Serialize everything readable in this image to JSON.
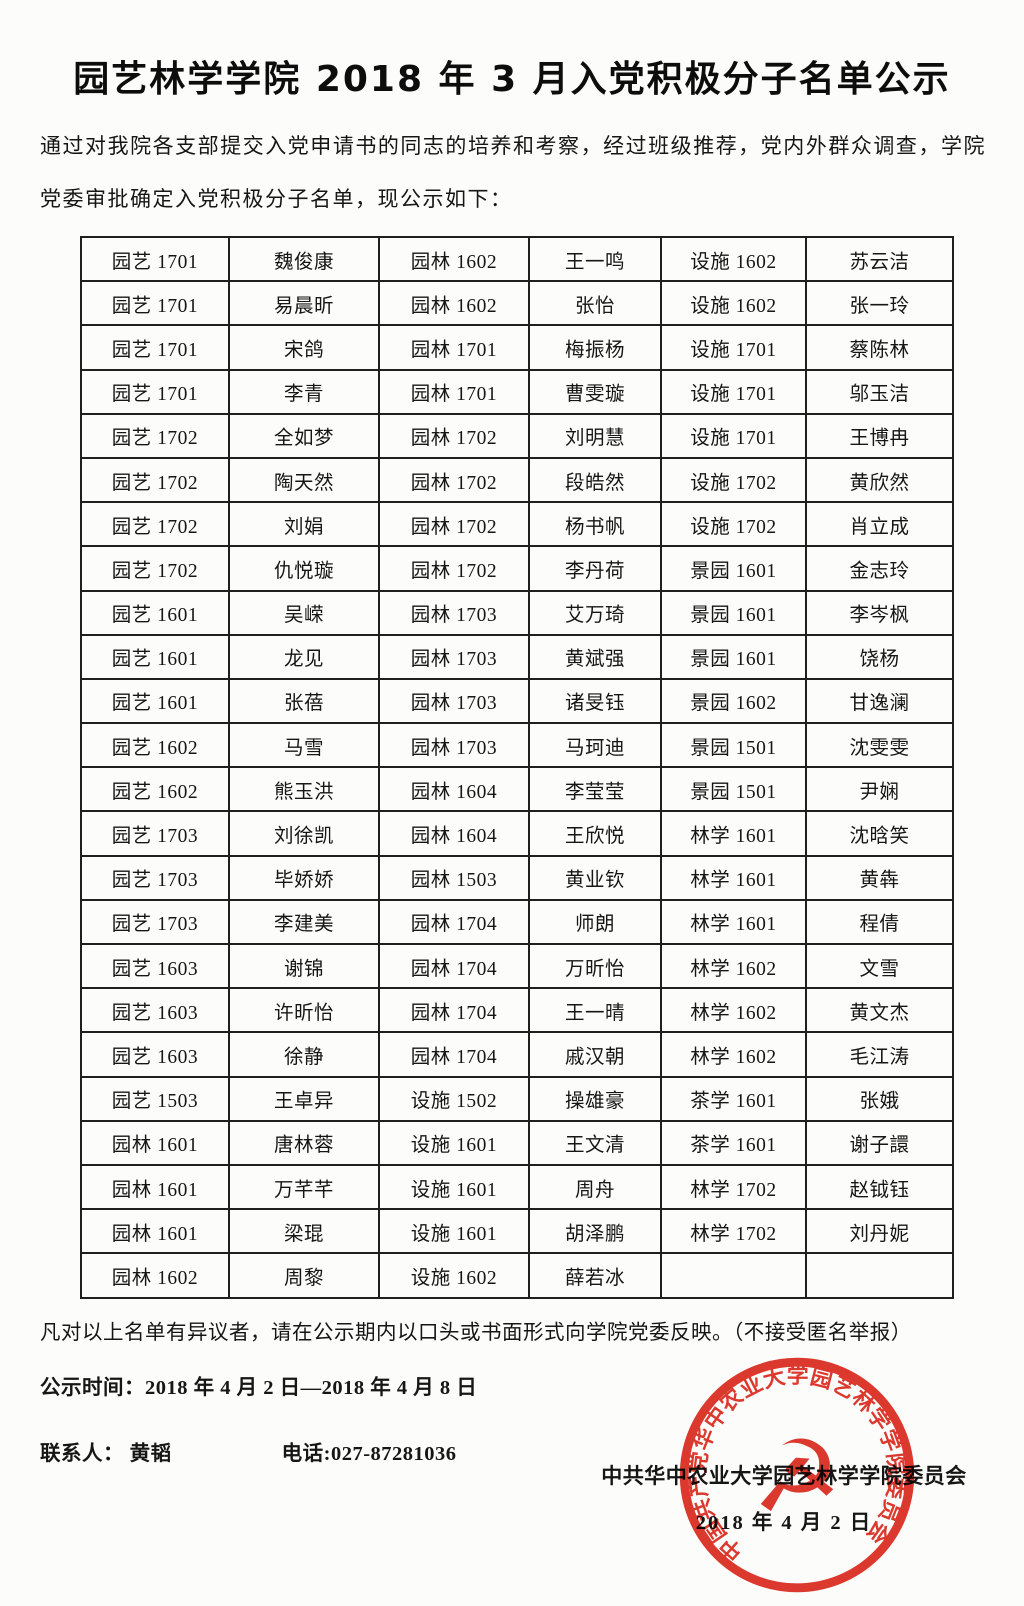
{
  "document": {
    "title": "园艺林学学院 2018 年 3 月入党积极分子名单公示",
    "intro": "通过对我院各支部提交入党申请书的同志的培养和考察，经过班级推荐，党内外群众调查，学院党委审批确定入党积极分子名单，现公示如下：",
    "objection_note": "凡对以上名单有异议者，请在公示期内以口头或书面形式向学院党委反映。（不接受匿名举报）",
    "publicity_period": "公示时间：2018 年 4 月 2 日—2018 年 4 月 8 日",
    "contact": "联系人：  黄韬",
    "phone": "电话:027-87281036",
    "committee": "中共华中农业大学园艺林学学院委员会",
    "date": "2018 年 4 月 2 日"
  },
  "roster_table": {
    "rows": [
      [
        "园艺 1701",
        "魏俊康",
        "园林 1602",
        "王一鸣",
        "设施 1602",
        "苏云洁"
      ],
      [
        "园艺 1701",
        "易晨昕",
        "园林 1602",
        "张怡",
        "设施 1602",
        "张一玲"
      ],
      [
        "园艺 1701",
        "宋鸽",
        "园林 1701",
        "梅振杨",
        "设施 1701",
        "蔡陈林"
      ],
      [
        "园艺 1701",
        "李青",
        "园林 1701",
        "曹雯璇",
        "设施 1701",
        "邬玉洁"
      ],
      [
        "园艺 1702",
        "全如梦",
        "园林 1702",
        "刘明慧",
        "设施 1701",
        "王博冉"
      ],
      [
        "园艺 1702",
        "陶天然",
        "园林 1702",
        "段皓然",
        "设施 1702",
        "黄欣然"
      ],
      [
        "园艺 1702",
        "刘娟",
        "园林 1702",
        "杨书帆",
        "设施 1702",
        "肖立成"
      ],
      [
        "园艺 1702",
        "仇悦璇",
        "园林 1702",
        "李丹荷",
        "景园 1601",
        "金志玲"
      ],
      [
        "园艺 1601",
        "吴嵘",
        "园林 1703",
        "艾万琦",
        "景园 1601",
        "李岑枫"
      ],
      [
        "园艺 1601",
        "龙见",
        "园林 1703",
        "黄斌强",
        "景园 1601",
        "饶杨"
      ],
      [
        "园艺 1601",
        "张蓓",
        "园林 1703",
        "诸旻钰",
        "景园 1602",
        "甘逸澜"
      ],
      [
        "园艺 1602",
        "马雪",
        "园林 1703",
        "马珂迪",
        "景园 1501",
        "沈雯雯"
      ],
      [
        "园艺 1602",
        "熊玉洪",
        "园林 1604",
        "李莹莹",
        "景园 1501",
        "尹娴"
      ],
      [
        "园艺 1703",
        "刘徐凯",
        "园林 1604",
        "王欣悦",
        "林学 1601",
        "沈晗笑"
      ],
      [
        "园艺 1703",
        "毕娇娇",
        "园林 1503",
        "黄业钦",
        "林学 1601",
        "黄犇"
      ],
      [
        "园艺 1703",
        "李建美",
        "园林 1704",
        "师朗",
        "林学 1601",
        "程倩"
      ],
      [
        "园艺 1603",
        "谢锦",
        "园林 1704",
        "万昕怡",
        "林学 1602",
        "文雪"
      ],
      [
        "园艺 1603",
        "许昕怡",
        "园林 1704",
        "王一晴",
        "林学 1602",
        "黄文杰"
      ],
      [
        "园艺 1603",
        "徐静",
        "园林 1704",
        "戚汉朝",
        "林学 1602",
        "毛江涛"
      ],
      [
        "园艺 1503",
        "王卓异",
        "设施 1502",
        "操雄豪",
        "茶学 1601",
        "张娥"
      ],
      [
        "园林 1601",
        "唐林蓉",
        "设施 1601",
        "王文清",
        "茶学 1601",
        "谢子譞"
      ],
      [
        "园林 1601",
        "万芊芊",
        "设施 1601",
        "周舟",
        "林学 1702",
        "赵钺钰"
      ],
      [
        "园林 1601",
        "梁琨",
        "设施 1601",
        "胡泽鹏",
        "林学 1702",
        "刘丹妮"
      ],
      [
        "园林 1602",
        "周黎",
        "设施 1602",
        "薛若冰",
        "",
        ""
      ]
    ]
  },
  "seal": {
    "ring_text": "中国共产党华中农业大学园艺林学学院委员会",
    "emblem_glyph": "☭",
    "color": "#dd2a1e"
  }
}
